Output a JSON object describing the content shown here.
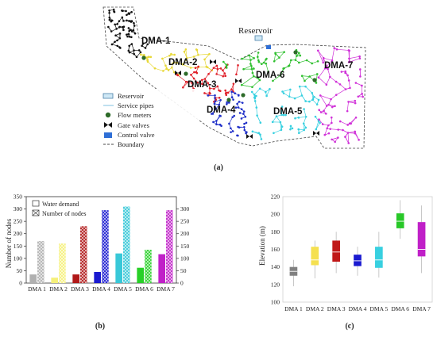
{
  "panel_a": {
    "label": "(a)",
    "reservoir_label": "Reservoir",
    "dma_labels": [
      "DMA-1",
      "DMA-2",
      "DMA-3",
      "DMA-4",
      "DMA-5",
      "DMA-6",
      "DMA-7"
    ],
    "zone_colors": {
      "DMA-1": "#111111",
      "DMA-2": "#e8d93a",
      "DMA-3": "#e0202a",
      "DMA-4": "#2030c8",
      "DMA-5": "#38d0e0",
      "DMA-6": "#30c030",
      "DMA-7": "#d030d8"
    },
    "legend": [
      {
        "label": "Reservoir",
        "icon": "reservoir-icon"
      },
      {
        "label": "Service pipes",
        "icon": "pipe-line-icon"
      },
      {
        "label": "Flow meters",
        "icon": "flow-meter-icon"
      },
      {
        "label": "Gate valves",
        "icon": "gate-valve-icon"
      },
      {
        "label": "Control valve",
        "icon": "control-valve-icon"
      },
      {
        "label": "Boundary",
        "icon": "boundary-dash-icon"
      }
    ]
  },
  "chart_data": [
    {
      "type": "bar",
      "panel_label": "(b)",
      "categories": [
        "DMA 1",
        "DMA 2",
        "DMA 3",
        "DMA 4",
        "DMA 5",
        "DMA 6",
        "DMA 7"
      ],
      "ylabel": "Number of nodes",
      "ylim": [
        0,
        350
      ],
      "yticks": [
        0,
        50,
        100,
        150,
        200,
        250,
        300,
        350
      ],
      "y2lim": [
        0,
        350
      ],
      "y2ticks": [
        0,
        50,
        100,
        150,
        200,
        250,
        300
      ],
      "legend_placement": "top-left",
      "colors": [
        "#b0b0b0",
        "#f5f07a",
        "#b01818",
        "#1a1ad0",
        "#38c8d8",
        "#28d028",
        "#c020c8"
      ],
      "series": [
        {
          "name": "Water demand",
          "pattern": "solid",
          "values": [
            35,
            22,
            35,
            45,
            120,
            62,
            117
          ]
        },
        {
          "name": "Number of nodes",
          "pattern": "crosshatch",
          "values": [
            170,
            160,
            230,
            295,
            310,
            135,
            295
          ]
        }
      ]
    },
    {
      "type": "box",
      "panel_label": "(c)",
      "categories": [
        "DMA 1",
        "DMA 2",
        "DMA 3",
        "DMA 4",
        "DMA 5",
        "DMA 6",
        "DMA 7"
      ],
      "ylabel": "Elevation (m)",
      "ylim": [
        100,
        220
      ],
      "yticks": [
        100,
        120,
        140,
        160,
        180,
        200,
        220
      ],
      "colors": [
        "#808080",
        "#f5e050",
        "#c01818",
        "#1a1ad0",
        "#38d0e0",
        "#28c828",
        "#c020c8"
      ],
      "boxes": [
        {
          "min": 118,
          "q1": 130,
          "median": 135,
          "q3": 140,
          "max": 148
        },
        {
          "min": 127,
          "q1": 142,
          "median": 148,
          "q3": 163,
          "max": 170
        },
        {
          "min": 133,
          "q1": 146,
          "median": 157,
          "q3": 170,
          "max": 180
        },
        {
          "min": 130,
          "q1": 141,
          "median": 147,
          "q3": 154,
          "max": 163
        },
        {
          "min": 128,
          "q1": 139,
          "median": 148,
          "q3": 163,
          "max": 180
        },
        {
          "min": 172,
          "q1": 184,
          "median": 192,
          "q3": 201,
          "max": 216
        },
        {
          "min": 133,
          "q1": 152,
          "median": 160,
          "q3": 191,
          "max": 210
        }
      ]
    }
  ]
}
